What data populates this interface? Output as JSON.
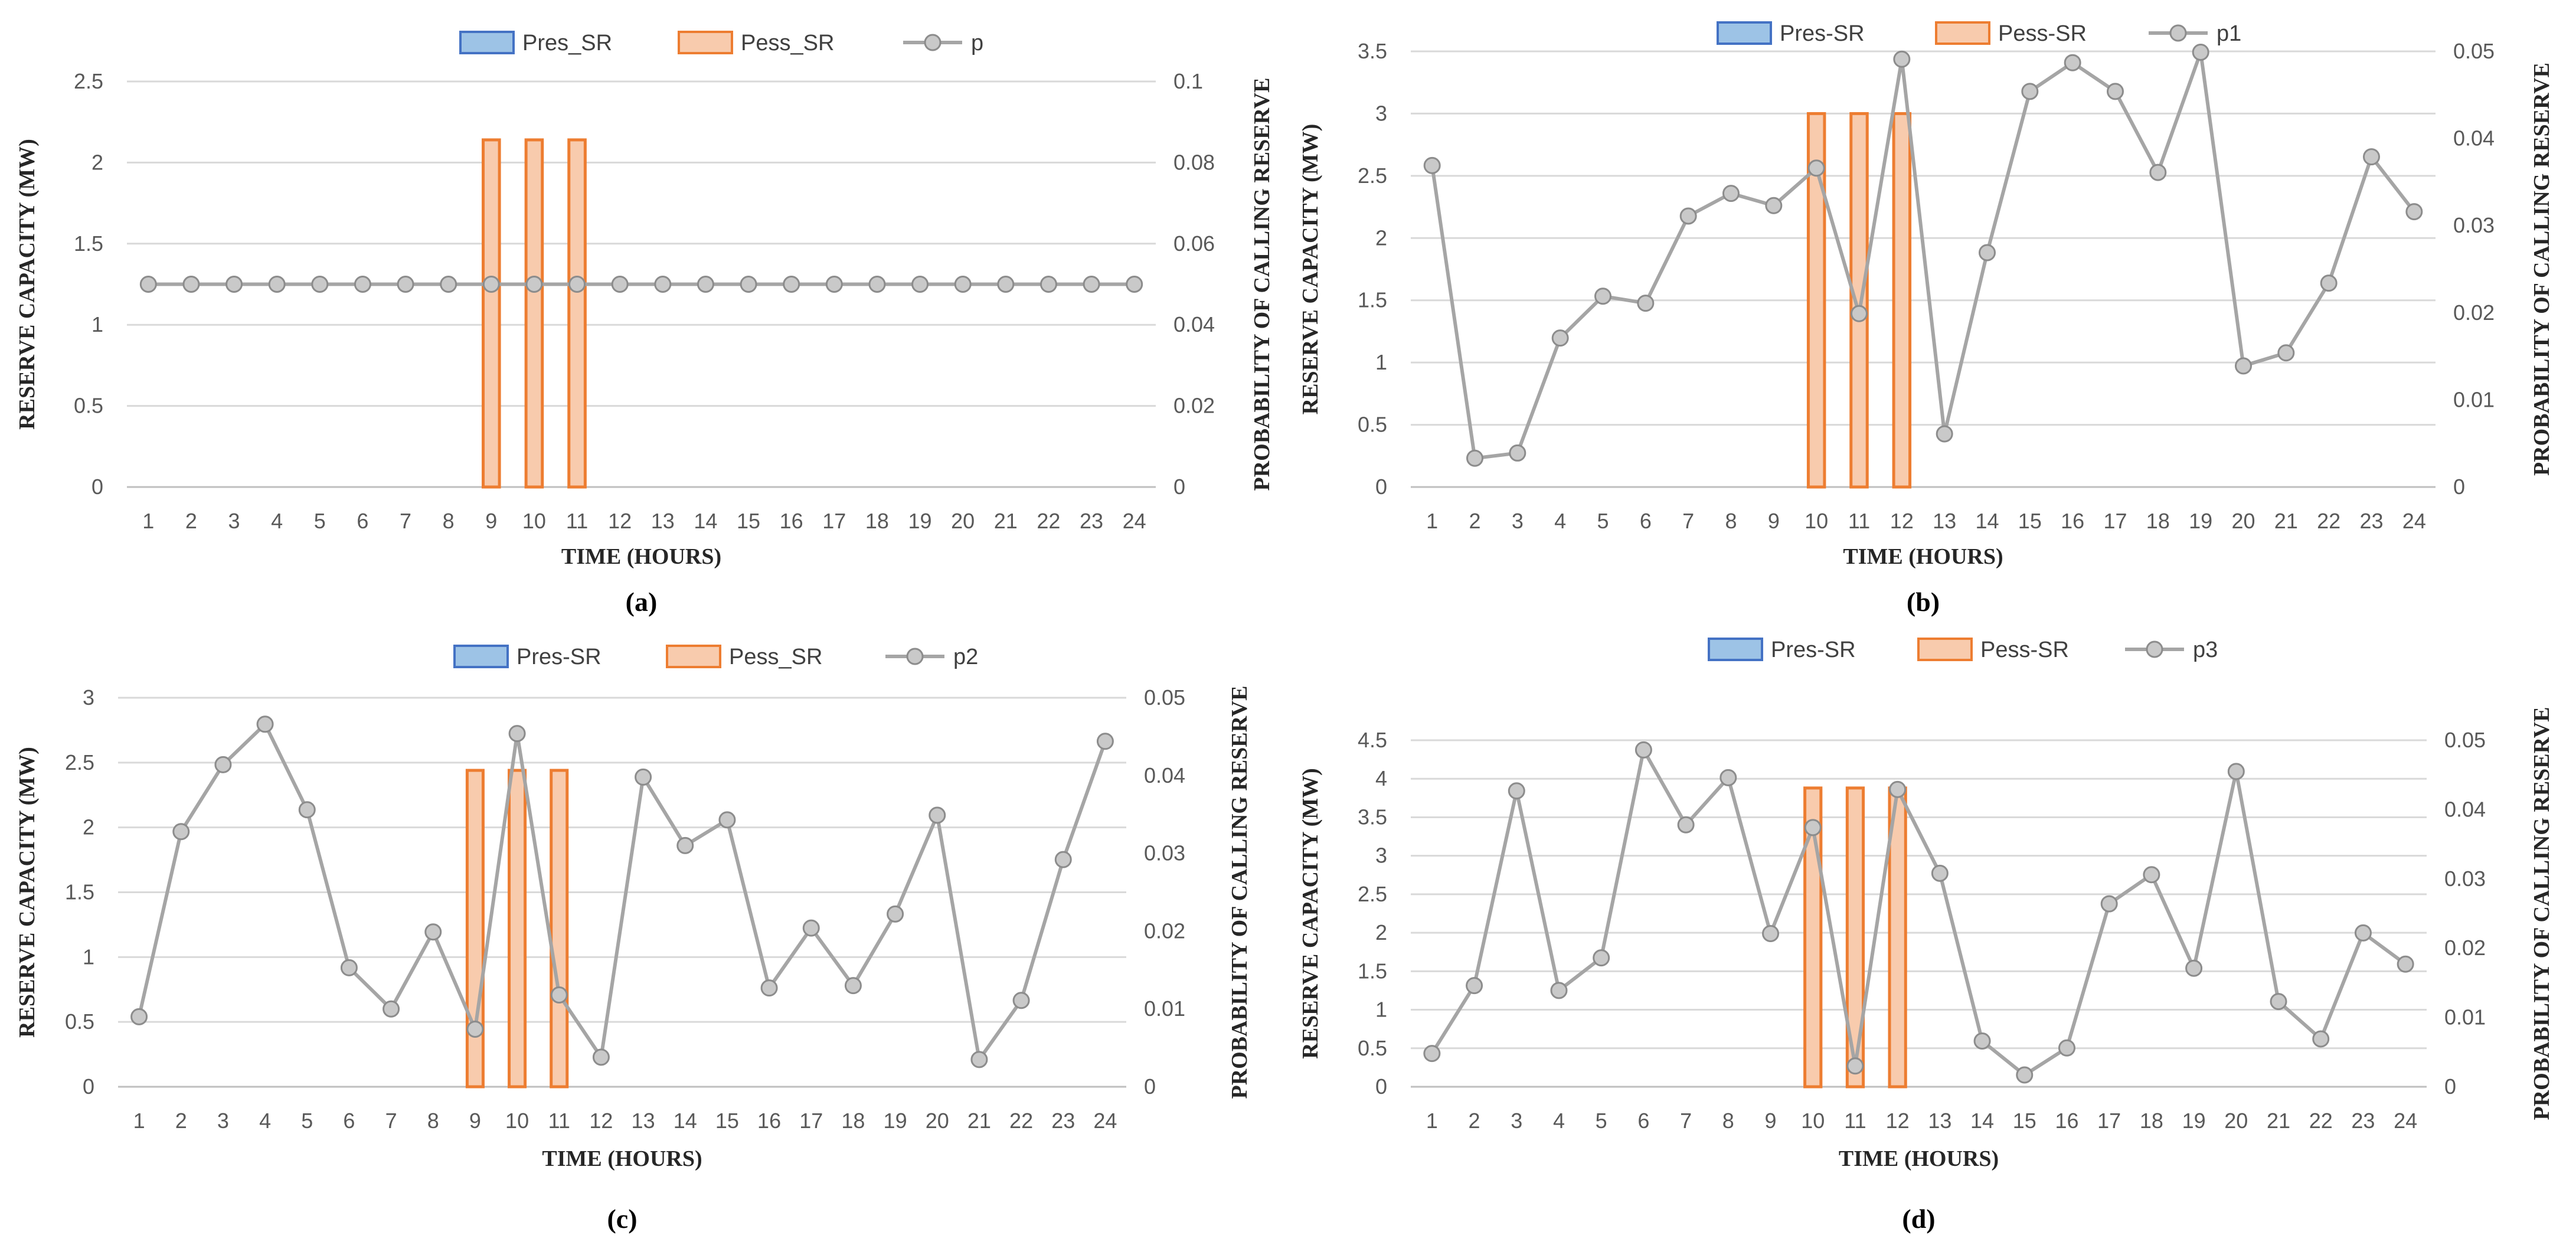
{
  "colors": {
    "pres_fill": "#9DC3E6",
    "pres_stroke": "#4472C4",
    "pess_fill": "#F8CBAD",
    "pess_stroke": "#ED7D31",
    "line": "#A5A5A5",
    "marker_fill": "#C9C9C9",
    "grid": "#D9D9D9"
  },
  "chart_data": [
    {
      "type": "bar",
      "panel_label": "(a)",
      "categories": [
        "1",
        "2",
        "3",
        "4",
        "5",
        "6",
        "7",
        "8",
        "9",
        "10",
        "11",
        "12",
        "13",
        "14",
        "15",
        "16",
        "17",
        "18",
        "19",
        "20",
        "21",
        "22",
        "23",
        "24"
      ],
      "xlabel": "TIME (HOURS)",
      "ylabel": "RESERVE CAPACITY (MW)",
      "y2label": "PROBABILITY OF CALLING RESERVE",
      "ylim": [
        0,
        2.5
      ],
      "yticks": [
        "0",
        "0.5",
        "1",
        "1.5",
        "2",
        "2.5"
      ],
      "y2lim": [
        0,
        0.1
      ],
      "y2ticks": [
        "0",
        "0.02",
        "0.04",
        "0.06",
        "0.08",
        "0.1"
      ],
      "legend": [
        "Pres_SR",
        "Pess_SR",
        "p"
      ],
      "series": [
        {
          "name": "Pres_SR",
          "axis": "left",
          "kind": "bar",
          "values": [
            0,
            0,
            0,
            0,
            0,
            0,
            0,
            0,
            0,
            0,
            0,
            0,
            0,
            0,
            0,
            0,
            0,
            0,
            0,
            0,
            0,
            0,
            0,
            0
          ]
        },
        {
          "name": "Pess_SR",
          "axis": "left",
          "kind": "bar",
          "values": [
            0,
            0,
            0,
            0,
            0,
            0,
            0,
            0,
            2.14,
            2.14,
            2.14,
            0,
            0,
            0,
            0,
            0,
            0,
            0,
            0,
            0,
            0,
            0,
            0,
            0
          ]
        },
        {
          "name": "p",
          "axis": "right",
          "kind": "line",
          "values": [
            0.05,
            0.05,
            0.05,
            0.05,
            0.05,
            0.05,
            0.05,
            0.05,
            0.05,
            0.05,
            0.05,
            0.05,
            0.05,
            0.05,
            0.05,
            0.05,
            0.05,
            0.05,
            0.05,
            0.05,
            0.05,
            0.05,
            0.05,
            0.05
          ]
        }
      ]
    },
    {
      "type": "bar",
      "panel_label": "(b)",
      "categories": [
        "1",
        "2",
        "3",
        "4",
        "5",
        "6",
        "7",
        "8",
        "9",
        "10",
        "11",
        "12",
        "13",
        "14",
        "15",
        "16",
        "17",
        "18",
        "19",
        "20",
        "21",
        "22",
        "23",
        "24"
      ],
      "xlabel": "TIME (HOURS)",
      "ylabel": "RESERVE CAPACITY (MW)",
      "y2label": "PROBABILITY OF CALLING RESERVE",
      "ylim": [
        0,
        3.5
      ],
      "yticks": [
        "0",
        "0.5",
        "1",
        "1.5",
        "2",
        "2.5",
        "3",
        "3.5"
      ],
      "y2lim": [
        0,
        0.05
      ],
      "y2ticks": [
        "0",
        "0.01",
        "0.02",
        "0.03",
        "0.04",
        "0.05"
      ],
      "legend": [
        "Pres-SR",
        "Pess-SR",
        "p1"
      ],
      "series": [
        {
          "name": "Pres-SR",
          "axis": "left",
          "kind": "bar",
          "values": [
            0,
            0,
            0,
            0,
            0,
            0,
            0,
            0,
            0,
            0,
            0,
            0,
            0,
            0,
            0,
            0,
            0,
            0,
            0,
            0,
            0,
            0,
            0,
            0
          ]
        },
        {
          "name": "Pess-SR",
          "axis": "left",
          "kind": "bar",
          "values": [
            0,
            0,
            0,
            0,
            0,
            0,
            0,
            0,
            0,
            3,
            3,
            3,
            0,
            0,
            0,
            0,
            0,
            0,
            0,
            0,
            0,
            0,
            0,
            0
          ]
        },
        {
          "name": "p1",
          "axis": "right",
          "kind": "line",
          "values": [
            0.0369,
            0.0033,
            0.0039,
            0.0171,
            0.0219,
            0.0211,
            0.0311,
            0.0337,
            0.0323,
            0.0366,
            0.0199,
            0.0491,
            0.0061,
            0.0269,
            0.0454,
            0.0487,
            0.0454,
            0.0361,
            0.0499,
            0.0139,
            0.0154,
            0.0234,
            0.0379,
            0.0316
          ]
        }
      ]
    },
    {
      "type": "bar",
      "panel_label": "(c)",
      "categories": [
        "1",
        "2",
        "3",
        "4",
        "5",
        "6",
        "7",
        "8",
        "9",
        "10",
        "11",
        "12",
        "13",
        "14",
        "15",
        "16",
        "17",
        "18",
        "19",
        "20",
        "21",
        "22",
        "23",
        "24"
      ],
      "xlabel": "TIME (HOURS)",
      "ylabel": "RESERVE CAPACITY (MW)",
      "y2label": "PROBABILITY OF CALLING RESERVE",
      "ylim": [
        0,
        3
      ],
      "yticks": [
        "0",
        "0.5",
        "1",
        "1.5",
        "2",
        "2.5",
        "3"
      ],
      "y2lim": [
        0,
        0.05
      ],
      "y2ticks": [
        "0",
        "0.01",
        "0.02",
        "0.03",
        "0.04",
        "0.05"
      ],
      "legend": [
        "Pres-SR",
        "Pess_SR",
        "p2"
      ],
      "series": [
        {
          "name": "Pres-SR",
          "axis": "left",
          "kind": "bar",
          "values": [
            0,
            0,
            0,
            0,
            0,
            0,
            0,
            0,
            0,
            0,
            0,
            0,
            0,
            0,
            0,
            0,
            0,
            0,
            0,
            0,
            0,
            0,
            0,
            0
          ]
        },
        {
          "name": "Pess_SR",
          "axis": "left",
          "kind": "bar",
          "values": [
            0,
            0,
            0,
            0,
            0,
            0,
            0,
            0,
            2.44,
            2.44,
            2.44,
            0,
            0,
            0,
            0,
            0,
            0,
            0,
            0,
            0,
            0,
            0,
            0,
            0
          ]
        },
        {
          "name": "p2",
          "axis": "right",
          "kind": "line",
          "values": [
            0.009,
            0.0328,
            0.0414,
            0.0466,
            0.0356,
            0.0153,
            0.01,
            0.0199,
            0.0074,
            0.0454,
            0.0118,
            0.0038,
            0.0398,
            0.031,
            0.0343,
            0.0127,
            0.0204,
            0.013,
            0.0222,
            0.0349,
            0.0035,
            0.0111,
            0.0292,
            0.0444
          ]
        }
      ]
    },
    {
      "type": "bar",
      "panel_label": "(d)",
      "categories": [
        "1",
        "2",
        "3",
        "4",
        "5",
        "6",
        "7",
        "8",
        "9",
        "10",
        "11",
        "12",
        "13",
        "14",
        "15",
        "16",
        "17",
        "18",
        "19",
        "20",
        "21",
        "22",
        "23",
        "24"
      ],
      "xlabel": "TIME (HOURS)",
      "ylabel": "RESERVE CAPACITY (MW)",
      "y2label": "PROBABILITY OF CALLING RESERVE",
      "ylim": [
        0,
        4.5
      ],
      "yticks": [
        "0",
        "0.5",
        "1",
        "1.5",
        "2",
        "2.5",
        "3",
        "3.5",
        "4",
        "4.5"
      ],
      "y2lim": [
        0,
        0.05
      ],
      "y2ticks": [
        "0",
        "0.01",
        "0.02",
        "0.03",
        "0.04",
        "0.05"
      ],
      "legend": [
        "Pres-SR",
        "Pess-SR",
        "p3"
      ],
      "series": [
        {
          "name": "Pres-SR",
          "axis": "left",
          "kind": "bar",
          "values": [
            0,
            0,
            0,
            0,
            0,
            0,
            0,
            0,
            0,
            0,
            0,
            0,
            0,
            0,
            0,
            0,
            0,
            0,
            0,
            0,
            0,
            0,
            0,
            0
          ]
        },
        {
          "name": "Pess-SR",
          "axis": "left",
          "kind": "bar",
          "values": [
            0,
            0,
            0,
            0,
            0,
            0,
            0,
            0,
            0,
            3.88,
            3.88,
            3.88,
            0,
            0,
            0,
            0,
            0,
            0,
            0,
            0,
            0,
            0,
            0,
            0
          ]
        },
        {
          "name": "p3",
          "axis": "right",
          "kind": "line",
          "values": [
            0.0048,
            0.0146,
            0.0427,
            0.0139,
            0.0186,
            0.0486,
            0.0378,
            0.0446,
            0.0221,
            0.0374,
            0.003,
            0.0429,
            0.0308,
            0.0066,
            0.0017,
            0.0056,
            0.0264,
            0.0306,
            0.0171,
            0.0455,
            0.0123,
            0.0069,
            0.0222,
            0.0177
          ]
        }
      ]
    }
  ]
}
